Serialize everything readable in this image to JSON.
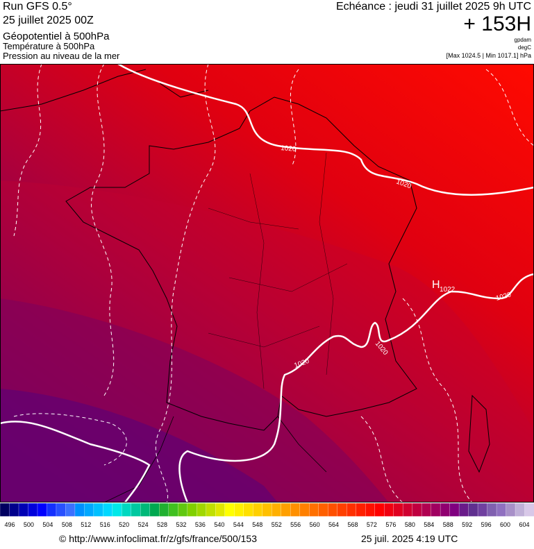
{
  "header": {
    "run": "Run GFS 0.5°",
    "date": "25 juillet 2025 00Z",
    "title": "Géopotentiel à 500hPa",
    "subtitle1": "Température à 500hPa",
    "subtitle2": "Pression au niveau de la mer",
    "echeance": "Echéance : jeudi 31 juillet 2025 9h UTC",
    "lead": "+ 153H",
    "unit1": "gpdam",
    "unit2": "degC",
    "range": "[Max 1024.5 | Min 1017.1] hPa"
  },
  "map": {
    "high_label": "H",
    "high_value": "1022",
    "isobar_labels": [
      "1020",
      "1020",
      "1020",
      "1020",
      "1020"
    ]
  },
  "colorbar": {
    "labels": [
      "496",
      "500",
      "504",
      "508",
      "512",
      "516",
      "520",
      "524",
      "528",
      "532",
      "536",
      "540",
      "544",
      "548",
      "552",
      "556",
      "560",
      "564",
      "568",
      "572",
      "576",
      "580",
      "584",
      "588",
      "592",
      "596",
      "600",
      "604"
    ],
    "colors": [
      "#000060",
      "#00008c",
      "#0000b4",
      "#0000dc",
      "#0000ff",
      "#1430ff",
      "#2850ff",
      "#3c70ff",
      "#0090ff",
      "#00a8ff",
      "#00c0ff",
      "#00d8ff",
      "#00e8e8",
      "#00d8c0",
      "#00c8a0",
      "#00b878",
      "#00a850",
      "#20b030",
      "#40c020",
      "#60c810",
      "#80d000",
      "#a0d800",
      "#c0e000",
      "#e0e800",
      "#ffff00",
      "#fff000",
      "#ffe000",
      "#ffd000",
      "#ffc000",
      "#ffb000",
      "#ffa000",
      "#ff9000",
      "#ff8000",
      "#ff7000",
      "#ff6000",
      "#ff5000",
      "#ff4000",
      "#ff3000",
      "#ff2000",
      "#ff1000",
      "#ff0000",
      "#f00010",
      "#e00020",
      "#d00030",
      "#c00040",
      "#b00050",
      "#a00060",
      "#900070",
      "#800080",
      "#6a1a8a",
      "#603090",
      "#7040a0",
      "#8060b0",
      "#9070c0",
      "#a890c8",
      "#c0b0d8",
      "#d8c8e8"
    ]
  },
  "footer": {
    "url": "© http://www.infoclimat.fr/z/gfs/france/500/153",
    "timestamp": "25 juil. 2025  4:19 UTC"
  }
}
